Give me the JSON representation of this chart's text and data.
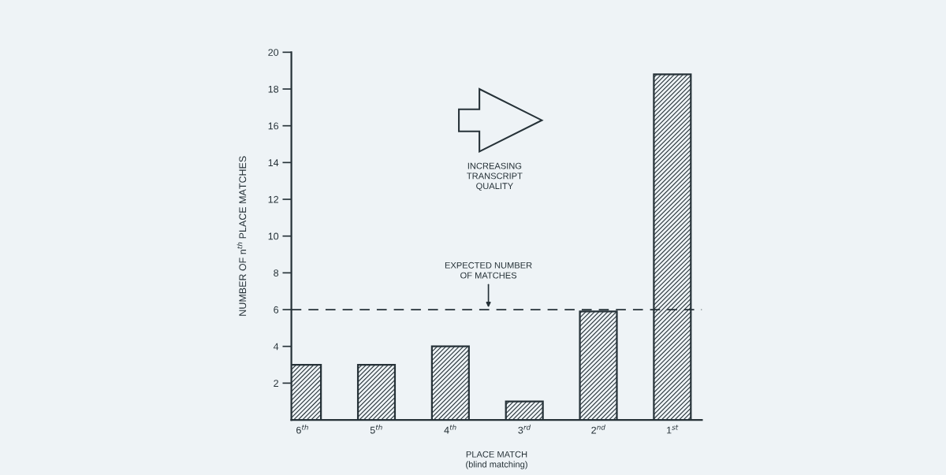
{
  "chart_data": {
    "type": "bar",
    "categories": [
      "6$^{th}$",
      "5$^{th}$",
      "4$^{th}$",
      "3$^{rd}$",
      "2$^{nd}$",
      "1$^{st}$"
    ],
    "values": [
      3,
      3,
      4,
      1,
      5.9,
      18.8
    ],
    "color": "#263238",
    "xlabel": "PLACE MATCH\n(blind matching)",
    "ylabel": "NUMBER OF n$^{th}$ PLACE MATCHES",
    "ylim": [
      0,
      20
    ],
    "yticks": [
      2,
      4,
      6,
      8,
      10,
      12,
      14,
      16,
      18,
      20
    ],
    "ref_lines": [
      {
        "axis": "y",
        "value": 6,
        "label": "EXPECTED NUMBER\nOF MATCHES",
        "color": "#263238",
        "line_style": "dashed"
      }
    ],
    "annotations": [
      "INCREASING\nTRANSCRIPT\nQUALITY"
    ],
    "grid": false,
    "legend": false
  }
}
